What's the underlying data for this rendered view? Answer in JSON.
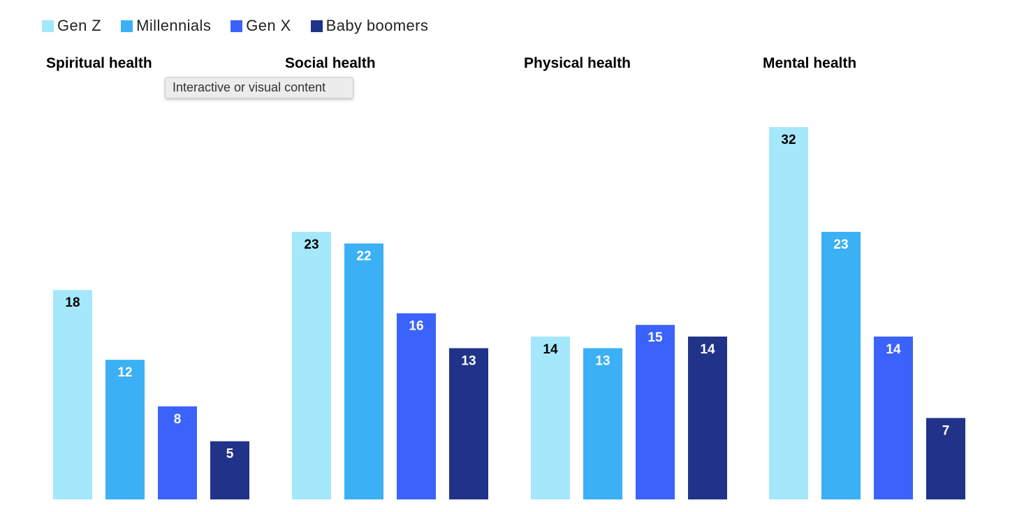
{
  "legend": [
    {
      "label": "Gen Z",
      "color": "#a5e7fb"
    },
    {
      "label": "Millennials",
      "color": "#3bb0f4"
    },
    {
      "label": "Gen X",
      "color": "#3b63fb"
    },
    {
      "label": "Baby boomers",
      "color": "#203388"
    }
  ],
  "tooltip": {
    "text": "Interactive or visual content"
  },
  "chart_data": {
    "type": "bar",
    "title": "",
    "ylim": [
      0,
      32
    ],
    "grid": false,
    "legend_position": "top-left",
    "series": [
      {
        "name": "Gen Z",
        "color": "#a5e7fb",
        "label_color": "#000000"
      },
      {
        "name": "Millennials",
        "color": "#3bb0f4",
        "label_color": "#ffffff"
      },
      {
        "name": "Gen X",
        "color": "#3b63fb",
        "label_color": "#ffffff"
      },
      {
        "name": "Baby boomers",
        "color": "#203388",
        "label_color": "#ffffff"
      }
    ],
    "panels": [
      {
        "title": "Spiritual health",
        "values": [
          18,
          12,
          8,
          5
        ]
      },
      {
        "title": "Social health",
        "values": [
          23,
          22,
          16,
          13
        ]
      },
      {
        "title": "Physical health",
        "values": [
          14,
          13,
          15,
          14
        ]
      },
      {
        "title": "Mental health",
        "values": [
          32,
          23,
          14,
          7
        ]
      }
    ]
  }
}
